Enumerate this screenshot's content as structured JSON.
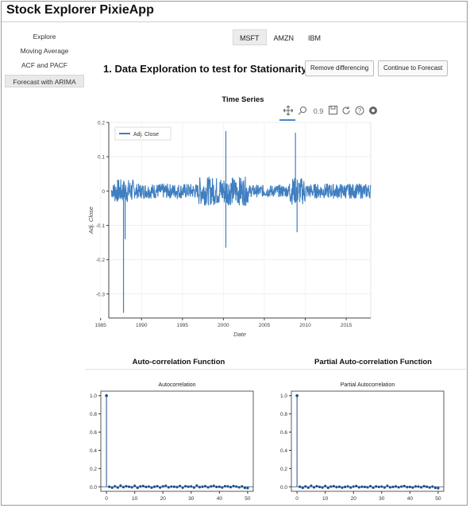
{
  "app": {
    "title": "Stock Explorer PixieApp"
  },
  "sidebar": {
    "items": [
      {
        "label": "Explore",
        "active": false
      },
      {
        "label": "Moving Average",
        "active": false
      },
      {
        "label": "ACF and PACF",
        "active": false
      },
      {
        "label": "Forecast with ARIMA",
        "active": true
      }
    ]
  },
  "tickers": [
    {
      "label": "MSFT",
      "active": true
    },
    {
      "label": "AMZN",
      "active": false
    },
    {
      "label": "IBM",
      "active": false
    }
  ],
  "main": {
    "section_title": "1. Data Exploration to test for Stationarity",
    "buttons": {
      "remove_differencing": "Remove differencing",
      "continue_forecast": "Continue to Forecast"
    }
  },
  "toolbar": {
    "icons": [
      "pan-icon",
      "box-zoom-icon",
      "wheel-zoom-icon",
      "save-icon",
      "reset-icon",
      "help-icon",
      "bokeh-logo-icon"
    ]
  },
  "acf_section": {
    "title": "Auto-correlation Function"
  },
  "pacf_section": {
    "title": "Partial Auto-correlation Function"
  },
  "chart_data": [
    {
      "type": "line",
      "title": "Time Series",
      "xlabel": "Date",
      "ylabel": "Adj. Close",
      "legend": {
        "entries": [
          "Adj. Close"
        ],
        "placement": "top-left"
      },
      "xlim": [
        1986,
        2018
      ],
      "ylim": [
        -0.37,
        0.2
      ],
      "x_ticks": [
        "1985",
        "1990",
        "1995",
        "2000",
        "2005",
        "2010",
        "2015"
      ],
      "y_ticks": [
        "0.2",
        "0.1",
        "0",
        "-0.1",
        "-0.2",
        "-0.3"
      ],
      "series": [
        {
          "name": "Adj. Close",
          "color": "#3f7ec0",
          "note_spikes": [
            {
              "x": 1987.8,
              "y": -0.355
            },
            {
              "x": 1988.0,
              "y": -0.14
            },
            {
              "x": 2000.3,
              "y": 0.175
            },
            {
              "x": 2000.3,
              "y": -0.165
            },
            {
              "x": 2008.8,
              "y": 0.17
            },
            {
              "x": 2009.0,
              "y": -0.12
            }
          ]
        }
      ]
    },
    {
      "type": "scatter",
      "title": "Autocorrelation",
      "xlim": [
        -2,
        52
      ],
      "ylim": [
        -0.05,
        1.05
      ],
      "x_ticks": [
        "0",
        "10",
        "20",
        "30",
        "40",
        "50"
      ],
      "y_ticks": [
        "1.0",
        "0.8",
        "0.6",
        "0.4",
        "0.2",
        "0.0"
      ],
      "lag0": 1.0,
      "values": [
        0.0,
        -0.01,
        0.005,
        -0.008,
        0.012,
        -0.004,
        0.006,
        0.0,
        -0.006,
        0.01,
        -0.012,
        0.004,
        0.008,
        -0.002,
        0.002,
        -0.01,
        0.0,
        0.006,
        -0.008,
        0.004,
        0.01,
        -0.006,
        0.002,
        0.0,
        -0.004,
        0.008,
        -0.01,
        0.006,
        0.0,
        0.004,
        -0.008,
        0.012,
        -0.004,
        0.0,
        0.006,
        -0.006,
        0.004,
        0.01,
        -0.002,
        0.0,
        -0.008,
        0.006,
        0.004,
        -0.004,
        0.008,
        0.002,
        -0.006,
        0.004,
        -0.012,
        -0.015
      ]
    },
    {
      "type": "scatter",
      "title": "Partial Autocorrelation",
      "xlim": [
        -2,
        52
      ],
      "ylim": [
        -0.05,
        1.05
      ],
      "x_ticks": [
        "0",
        "10",
        "20",
        "30",
        "40",
        "50"
      ],
      "y_ticks": [
        "1.0",
        "0.8",
        "0.6",
        "0.4",
        "0.2",
        "0.0"
      ],
      "lag0": 1.0,
      "values": [
        0.0,
        -0.012,
        0.004,
        -0.01,
        0.01,
        -0.006,
        0.006,
        -0.002,
        -0.008,
        0.008,
        -0.012,
        0.002,
        0.006,
        -0.004,
        0.0,
        -0.01,
        -0.002,
        0.004,
        -0.008,
        0.002,
        0.008,
        -0.006,
        0.0,
        -0.002,
        -0.006,
        0.006,
        -0.01,
        0.004,
        -0.002,
        0.002,
        -0.008,
        0.01,
        -0.006,
        -0.002,
        0.004,
        -0.006,
        0.002,
        0.008,
        -0.004,
        -0.002,
        -0.008,
        0.004,
        0.002,
        -0.006,
        0.006,
        0.0,
        -0.008,
        0.002,
        -0.012,
        -0.016
      ]
    }
  ]
}
